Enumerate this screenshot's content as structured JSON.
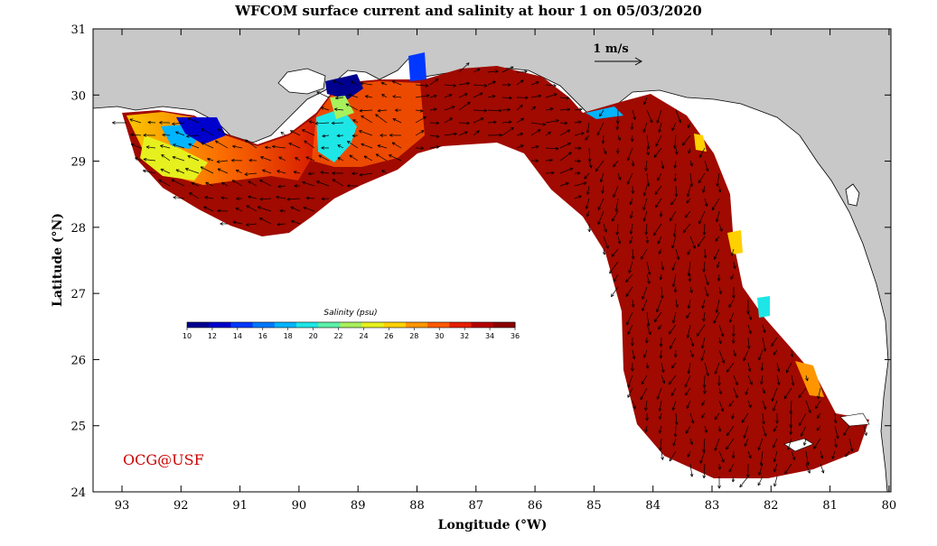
{
  "title": "WFCOM surface current and salinity at hour 1 on 05/03/2020",
  "axes": {
    "x_label": "Longitude (°W)",
    "y_label": "Latitude (°N)",
    "x_ticks": [
      "93",
      "92",
      "91",
      "90",
      "89",
      "88",
      "87",
      "86",
      "85",
      "84",
      "83",
      "82",
      "81",
      "80"
    ],
    "y_ticks": [
      "31",
      "30",
      "29",
      "28",
      "27",
      "26",
      "25",
      "24"
    ]
  },
  "colorbar": {
    "title": "Salinity (psu)",
    "ticks": [
      "10",
      "12",
      "14",
      "16",
      "18",
      "20",
      "22",
      "24",
      "26",
      "28",
      "30",
      "32",
      "34",
      "36"
    ],
    "colors": [
      "#00008f",
      "#0000cc",
      "#0038ff",
      "#0078ff",
      "#00b4ff",
      "#1ee6e6",
      "#5cf0a8",
      "#a8f05c",
      "#e6f01e",
      "#ffd000",
      "#ff9600",
      "#ff5a00",
      "#e61e00",
      "#b40000",
      "#8b0000"
    ]
  },
  "scale_label": "1 m/s",
  "credit": "OCG@USF",
  "colors": {
    "land": "#c8c8c8",
    "ocean_dominant": "#a00a00",
    "credit": "#cc0000"
  }
}
